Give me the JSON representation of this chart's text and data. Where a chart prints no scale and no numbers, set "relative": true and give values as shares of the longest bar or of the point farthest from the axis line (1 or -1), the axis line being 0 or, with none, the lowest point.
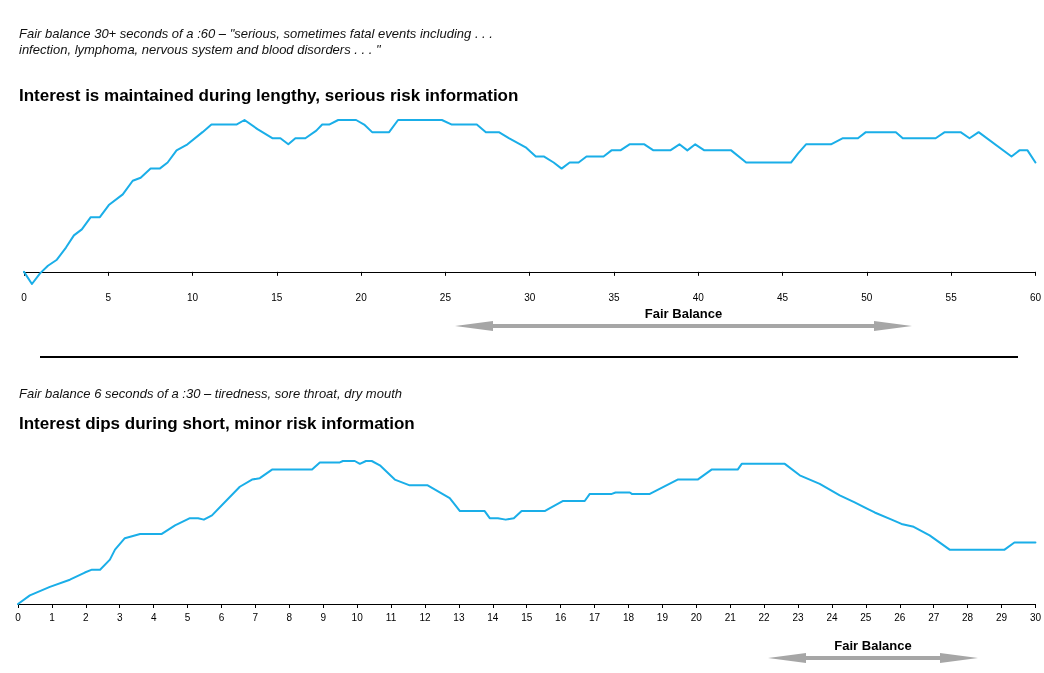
{
  "chart_data": [
    {
      "type": "line",
      "relative": true,
      "subtitle": "Fair balance 30+ seconds of a :60 – \"serious, sometimes fatal events including . . .\ninfection, lymphoma, nervous system and blood disorders . . . \"",
      "title": "Interest is maintained during lengthy, serious risk information",
      "xlim": [
        0,
        60
      ],
      "xticks": [
        0,
        5,
        10,
        15,
        20,
        25,
        30,
        35,
        40,
        45,
        50,
        55,
        60
      ],
      "marker": "none",
      "line_style": "solid",
      "annotations": [
        "Fair Balance"
      ],
      "series": [
        {
          "color": "#1aaee8",
          "x": [
            0,
            0.47,
            0.95,
            1.42,
            1.95,
            2.49,
            2.96,
            3.43,
            3.96,
            4.5,
            5.03,
            5.86,
            6.45,
            6.92,
            7.51,
            8.05,
            8.52,
            9.05,
            9.7,
            10.59,
            11.12,
            12.6,
            13.08,
            13.85,
            14.73,
            15.21,
            15.68,
            16.1,
            16.69,
            17.34,
            17.69,
            18.1,
            18.64,
            19.7,
            20.18,
            20.65,
            21.66,
            22.19,
            24.79,
            25.38,
            26.86,
            27.4,
            28.17,
            28.76,
            29.76,
            30.36,
            30.83,
            31.42,
            31.89,
            32.37,
            32.9,
            33.37,
            34.38,
            34.85,
            35.38,
            35.92,
            36.8,
            37.34,
            38.34,
            38.88,
            39.35,
            39.82,
            40.36,
            41.95,
            42.84,
            45.5,
            45.92,
            46.39,
            47.87,
            48.58,
            49.47,
            49.94,
            51.72,
            52.13,
            54.08,
            54.62,
            55.56,
            56.09,
            56.63,
            58.58,
            59.05,
            59.53,
            60
          ],
          "values": [
            0,
            -0.08,
            -0.01,
            0.04,
            0.08,
            0.16,
            0.24,
            0.28,
            0.36,
            0.36,
            0.44,
            0.51,
            0.6,
            0.62,
            0.68,
            0.68,
            0.72,
            0.8,
            0.84,
            0.92,
            0.97,
            0.97,
            1,
            0.94,
            0.88,
            0.88,
            0.84,
            0.88,
            0.88,
            0.93,
            0.97,
            0.97,
            1,
            1,
            0.97,
            0.92,
            0.92,
            1,
            1,
            0.97,
            0.97,
            0.92,
            0.92,
            0.88,
            0.82,
            0.76,
            0.76,
            0.72,
            0.68,
            0.72,
            0.72,
            0.76,
            0.76,
            0.8,
            0.8,
            0.84,
            0.84,
            0.8,
            0.8,
            0.84,
            0.8,
            0.84,
            0.8,
            0.8,
            0.72,
            0.72,
            0.78,
            0.84,
            0.84,
            0.88,
            0.88,
            0.92,
            0.92,
            0.88,
            0.88,
            0.92,
            0.92,
            0.88,
            0.92,
            0.76,
            0.8,
            0.8,
            0.72
          ]
        }
      ]
    },
    {
      "type": "line",
      "relative": true,
      "subtitle": "Fair balance 6 seconds of a :30 – tiredness, sore throat, dry mouth",
      "title": "Interest dips during short, minor risk information",
      "xlim": [
        0,
        30
      ],
      "xticks": [
        0,
        1,
        2,
        3,
        4,
        5,
        6,
        7,
        8,
        9,
        10,
        11,
        12,
        13,
        14,
        15,
        16,
        17,
        18,
        19,
        20,
        21,
        22,
        23,
        24,
        25,
        26,
        27,
        28,
        29,
        30
      ],
      "marker": "none",
      "line_style": "solid",
      "annotations": [
        "Fair Balance"
      ],
      "series": [
        {
          "color": "#1aaee8",
          "x": [
            0,
            0.35,
            0.94,
            1.53,
            1.97,
            2.18,
            2.42,
            2.71,
            2.86,
            3.15,
            3.6,
            4.24,
            4.63,
            5.07,
            5.31,
            5.48,
            5.72,
            6.54,
            6.9,
            7.13,
            7.49,
            8.67,
            8.9,
            9.49,
            9.58,
            9.93,
            10.08,
            10.26,
            10.43,
            10.67,
            11.11,
            11.55,
            12.08,
            12.73,
            13.03,
            13.76,
            13.91,
            14.15,
            14.38,
            14.62,
            14.85,
            15.53,
            16.06,
            16.71,
            16.86,
            17.51,
            17.62,
            18.04,
            18.1,
            18.63,
            19.45,
            20.04,
            20.45,
            21.22,
            21.34,
            22.61,
            23.05,
            23.64,
            24.23,
            24.67,
            25.26,
            25.76,
            26.05,
            26.41,
            26.88,
            27.47,
            29.09,
            29.38,
            30
          ],
          "values": [
            0,
            0.06,
            0.12,
            0.17,
            0.22,
            0.24,
            0.24,
            0.31,
            0.38,
            0.46,
            0.49,
            0.49,
            0.55,
            0.6,
            0.6,
            0.59,
            0.62,
            0.82,
            0.87,
            0.88,
            0.94,
            0.94,
            0.99,
            0.99,
            1,
            1,
            0.98,
            1,
            1,
            0.97,
            0.87,
            0.83,
            0.83,
            0.74,
            0.65,
            0.65,
            0.6,
            0.6,
            0.59,
            0.6,
            0.65,
            0.65,
            0.72,
            0.72,
            0.77,
            0.77,
            0.78,
            0.78,
            0.77,
            0.77,
            0.87,
            0.87,
            0.94,
            0.94,
            0.98,
            0.98,
            0.9,
            0.84,
            0.76,
            0.71,
            0.64,
            0.59,
            0.56,
            0.54,
            0.48,
            0.38,
            0.38,
            0.43,
            0.43
          ]
        }
      ]
    }
  ]
}
